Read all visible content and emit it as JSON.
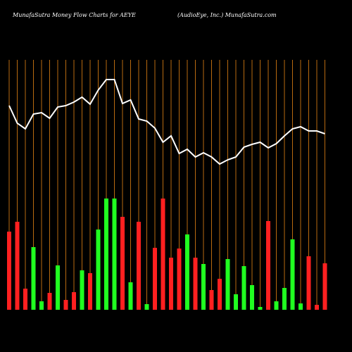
{
  "chart_data": {
    "type": "bar-line",
    "title": "MunafaSutra  Money Flow  Charts for AEYE",
    "subtitle": "(AudioEye, Inc.) MunafaSutra.com",
    "categories": [
      null,
      null,
      null,
      null,
      null,
      null,
      null,
      null,
      null,
      null,
      null,
      null,
      null,
      null,
      null,
      null,
      null,
      null,
      null,
      null,
      null,
      null,
      null,
      null,
      null,
      null,
      null,
      null,
      null,
      null,
      null,
      null,
      null,
      null,
      null,
      null,
      null,
      null,
      null,
      null
    ],
    "series": [
      {
        "name": null,
        "kind": "bar",
        "values": [
          111,
          125,
          30,
          89,
          12,
          24,
          63,
          14,
          25,
          56,
          52,
          114,
          158,
          158,
          132,
          39,
          125,
          8,
          88,
          158,
          74,
          87,
          107,
          74,
          65,
          28,
          44,
          72,
          22,
          62,
          35,
          4,
          126,
          12,
          31,
          100,
          9,
          76,
          7,
          66
        ],
        "colors": [
          "#ff2020",
          "#ff2020",
          "#ff2020",
          "#20ff20",
          "#20ff20",
          "#ff2020",
          "#20ff20",
          "#ff2020",
          "#ff2020",
          "#20ff20",
          "#ff2020",
          "#20ff20",
          "#20ff20",
          "#20ff20",
          "#ff2020",
          "#20ff20",
          "#ff2020",
          "#20ff20",
          "#ff2020",
          "#ff2020",
          "#ff2020",
          "#ff2020",
          "#20ff20",
          "#ff2020",
          "#20ff20",
          "#ff2020",
          "#ff2020",
          "#20ff20",
          "#20ff20",
          "#20ff20",
          "#20ff20",
          "#20ff20",
          "#ff2020",
          "#20ff20",
          "#20ff20",
          "#20ff20",
          "#20ff20",
          "#ff2020",
          "#ff2020",
          "#ff2020"
        ]
      },
      {
        "name": null,
        "kind": "line",
        "color": "#ffffff",
        "values": [
          290,
          265,
          257,
          278,
          280,
          272,
          288,
          290,
          295,
          302,
          292,
          312,
          327,
          327,
          293,
          298,
          271,
          268,
          258,
          238,
          247,
          222,
          228,
          217,
          223,
          217,
          207,
          213,
          217,
          231,
          235,
          238,
          230,
          236,
          247,
          257,
          260,
          254,
          254,
          250
        ]
      }
    ],
    "ylim": [
      0,
      355
    ],
    "grid_color": "#b86a10"
  }
}
